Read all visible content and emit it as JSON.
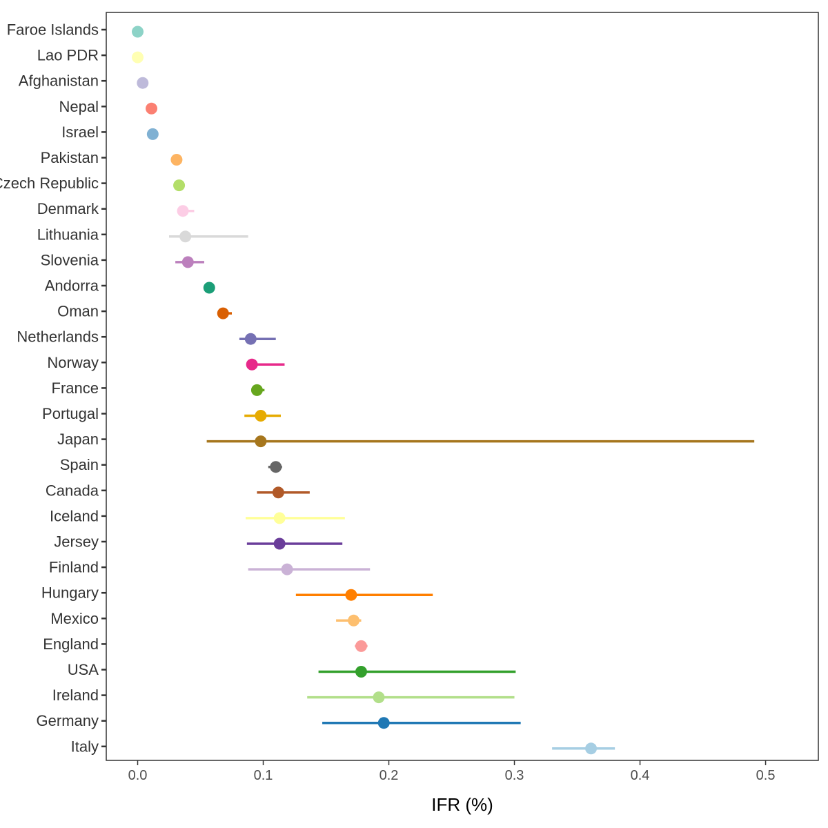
{
  "chart_data": {
    "type": "scatter",
    "subtype": "dot-with-interval",
    "orientation": "horizontal",
    "title": "",
    "xlabel": "IFR (%)",
    "ylabel": "",
    "xlim": [
      -0.025,
      0.542
    ],
    "xticks": [
      0.0,
      0.1,
      0.2,
      0.3,
      0.4,
      0.5
    ],
    "xtick_labels": [
      "0.0",
      "0.1",
      "0.2",
      "0.3",
      "0.4",
      "0.5"
    ],
    "grid": false,
    "legend": "none",
    "points": [
      {
        "country": "Faroe Islands",
        "ifr": 0.0,
        "lower": 0.0,
        "upper": 0.0,
        "color": "#8DD3C7"
      },
      {
        "country": "Lao PDR",
        "ifr": 0.0,
        "lower": 0.0,
        "upper": 0.0,
        "color": "#FFFFB3"
      },
      {
        "country": "Afghanistan",
        "ifr": 0.004,
        "lower": 0.004,
        "upper": 0.004,
        "color": "#BEBADA"
      },
      {
        "country": "Nepal",
        "ifr": 0.011,
        "lower": 0.011,
        "upper": 0.011,
        "color": "#FB8072"
      },
      {
        "country": "Israel",
        "ifr": 0.012,
        "lower": 0.012,
        "upper": 0.012,
        "color": "#80B1D3"
      },
      {
        "country": "Pakistan",
        "ifr": 0.031,
        "lower": 0.031,
        "upper": 0.031,
        "color": "#FDB462"
      },
      {
        "country": "Czech Republic",
        "ifr": 0.033,
        "lower": 0.033,
        "upper": 0.033,
        "color": "#B3DE69"
      },
      {
        "country": "Denmark",
        "ifr": 0.036,
        "lower": 0.032,
        "upper": 0.045,
        "color": "#FCCDE5"
      },
      {
        "country": "Lithuania",
        "ifr": 0.038,
        "lower": 0.025,
        "upper": 0.088,
        "color": "#D9D9D9"
      },
      {
        "country": "Slovenia",
        "ifr": 0.04,
        "lower": 0.03,
        "upper": 0.053,
        "color": "#BC80BD"
      },
      {
        "country": "Andorra",
        "ifr": 0.057,
        "lower": 0.057,
        "upper": 0.057,
        "color": "#1B9E77"
      },
      {
        "country": "Oman",
        "ifr": 0.068,
        "lower": 0.068,
        "upper": 0.075,
        "color": "#D95F02"
      },
      {
        "country": "Netherlands",
        "ifr": 0.09,
        "lower": 0.081,
        "upper": 0.11,
        "color": "#7570B3"
      },
      {
        "country": "Norway",
        "ifr": 0.091,
        "lower": 0.091,
        "upper": 0.117,
        "color": "#E7298A"
      },
      {
        "country": "France",
        "ifr": 0.095,
        "lower": 0.095,
        "upper": 0.101,
        "color": "#66A61E"
      },
      {
        "country": "Portugal",
        "ifr": 0.098,
        "lower": 0.085,
        "upper": 0.114,
        "color": "#E6AB02"
      },
      {
        "country": "Japan",
        "ifr": 0.098,
        "lower": 0.055,
        "upper": 0.491,
        "color": "#A6761D"
      },
      {
        "country": "Spain",
        "ifr": 0.11,
        "lower": 0.104,
        "upper": 0.115,
        "color": "#666666"
      },
      {
        "country": "Canada",
        "ifr": 0.112,
        "lower": 0.095,
        "upper": 0.137,
        "color": "#B15928"
      },
      {
        "country": "Iceland",
        "ifr": 0.113,
        "lower": 0.086,
        "upper": 0.165,
        "color": "#FFFF99"
      },
      {
        "country": "Jersey",
        "ifr": 0.113,
        "lower": 0.087,
        "upper": 0.163,
        "color": "#6A3D9A"
      },
      {
        "country": "Finland",
        "ifr": 0.119,
        "lower": 0.088,
        "upper": 0.185,
        "color": "#CAB2D6"
      },
      {
        "country": "Hungary",
        "ifr": 0.17,
        "lower": 0.126,
        "upper": 0.235,
        "color": "#FF7F00"
      },
      {
        "country": "Mexico",
        "ifr": 0.172,
        "lower": 0.158,
        "upper": 0.178,
        "color": "#FDBF6F"
      },
      {
        "country": "England",
        "ifr": 0.178,
        "lower": 0.173,
        "upper": 0.183,
        "color": "#FB9A99"
      },
      {
        "country": "USA",
        "ifr": 0.178,
        "lower": 0.144,
        "upper": 0.301,
        "color": "#33A02C"
      },
      {
        "country": "Ireland",
        "ifr": 0.192,
        "lower": 0.135,
        "upper": 0.3,
        "color": "#B2DF8A"
      },
      {
        "country": "Germany",
        "ifr": 0.196,
        "lower": 0.147,
        "upper": 0.305,
        "color": "#1F78B4"
      },
      {
        "country": "Italy",
        "ifr": 0.361,
        "lower": 0.33,
        "upper": 0.38,
        "color": "#A6CEE3"
      }
    ]
  }
}
